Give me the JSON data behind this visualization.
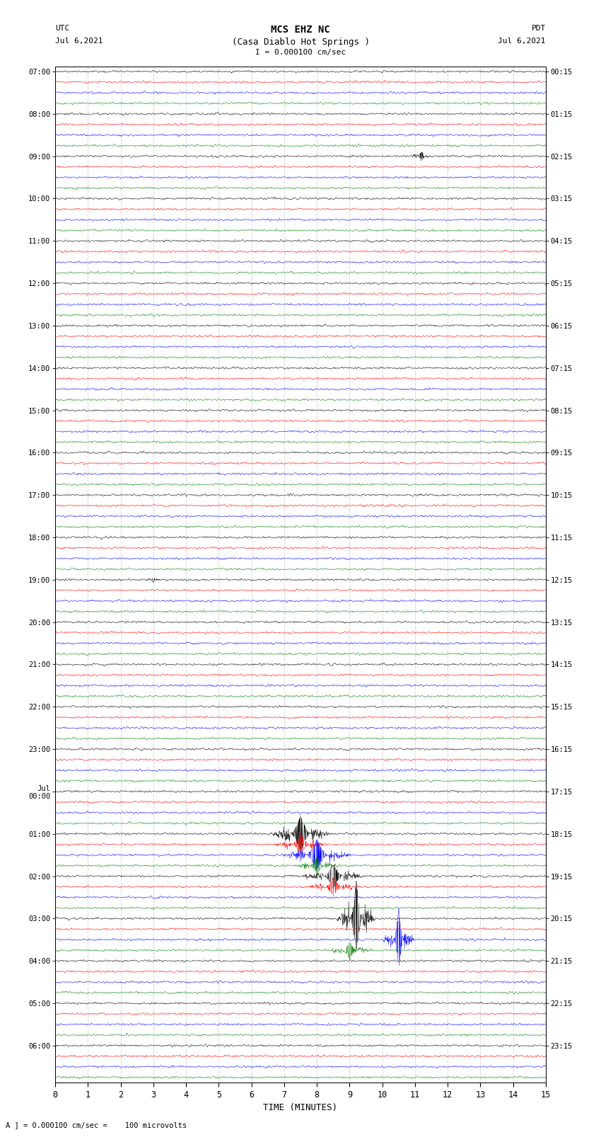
{
  "title_line1": "MCS EHZ NC",
  "title_line2": "(Casa Diablo Hot Springs )",
  "title_line3": "I = 0.000100 cm/sec",
  "left_header_line1": "UTC",
  "left_header_line2": "Jul 6,2021",
  "right_header_line1": "PDT",
  "right_header_line2": "Jul 6,2021",
  "xlabel": "TIME (MINUTES)",
  "footer": "A ] = 0.000100 cm/sec =    100 microvolts",
  "colors": [
    "black",
    "red",
    "blue",
    "green"
  ],
  "utc_labels": [
    "07:00",
    "08:00",
    "09:00",
    "10:00",
    "11:00",
    "12:00",
    "13:00",
    "14:00",
    "15:00",
    "16:00",
    "17:00",
    "18:00",
    "19:00",
    "20:00",
    "21:00",
    "22:00",
    "23:00",
    "Jul\n00:00",
    "01:00",
    "02:00",
    "03:00",
    "04:00",
    "05:00",
    "06:00"
  ],
  "pdt_labels": [
    "00:15",
    "01:15",
    "02:15",
    "03:15",
    "04:15",
    "05:15",
    "06:15",
    "07:15",
    "08:15",
    "09:15",
    "10:15",
    "11:15",
    "12:15",
    "13:15",
    "14:15",
    "15:15",
    "16:15",
    "17:15",
    "18:15",
    "19:15",
    "20:15",
    "21:15",
    "22:15",
    "23:15"
  ],
  "num_groups": 24,
  "traces_per_group": 4,
  "x_min": 0,
  "x_max": 15,
  "x_ticks": [
    0,
    1,
    2,
    3,
    4,
    5,
    6,
    7,
    8,
    9,
    10,
    11,
    12,
    13,
    14,
    15
  ],
  "noise_amplitude": 0.09,
  "fig_width": 8.5,
  "fig_height": 16.13,
  "dpi": 100,
  "n_points": 1800
}
